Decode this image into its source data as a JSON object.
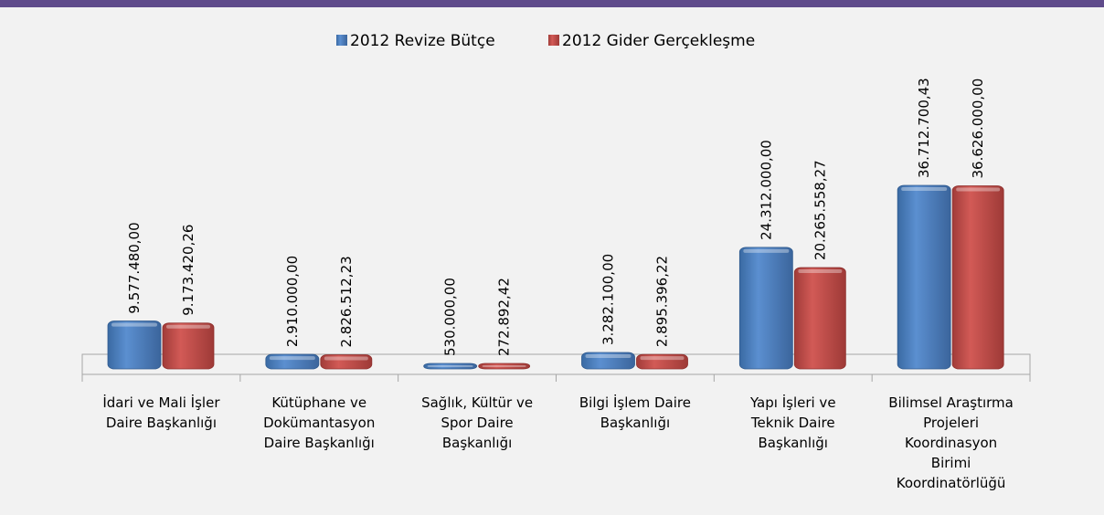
{
  "chart_data": {
    "type": "bar",
    "categories": [
      [
        "İdari ve Mali İşler",
        "Daire Başkanlığı"
      ],
      [
        "Kütüphane ve",
        "Dokümantasyon",
        "Daire Başkanlığı"
      ],
      [
        "Sağlık, Kültür ve",
        "Spor Daire",
        "Başkanlığı"
      ],
      [
        "Bilgi İşlem Daire",
        "Başkanlığı"
      ],
      [
        "Yapı İşleri ve",
        "Teknik Daire",
        "Başkanlığı"
      ],
      [
        "Bilimsel Araştırma",
        "Projeleri",
        "Koordinasyon",
        "Birimi",
        "Koordinatörlüğü"
      ]
    ],
    "series": [
      {
        "name": "2012 Revize Bütçe",
        "color": "#4f81bd",
        "values": [
          9577480.0,
          2910000.0,
          530000.0,
          3282100.0,
          24312000.0,
          36712700.43
        ],
        "value_labels": [
          "9.577.480,00",
          "2.910.000,00",
          "530.000,00",
          "3.282.100,00",
          "24.312.000,00",
          "36.712.700,43"
        ]
      },
      {
        "name": "2012 Gider Gerçekleşme",
        "color": "#c0504d",
        "values": [
          9173420.26,
          2826512.23,
          272892.42,
          2895396.22,
          20265558.27,
          36626000.0
        ],
        "value_labels": [
          "9.173.420,26",
          "2.826.512,23",
          "272.892,42",
          "2.895.396,22",
          "20.265.558,27",
          "36.626.000,00"
        ]
      }
    ],
    "legend": "top"
  }
}
